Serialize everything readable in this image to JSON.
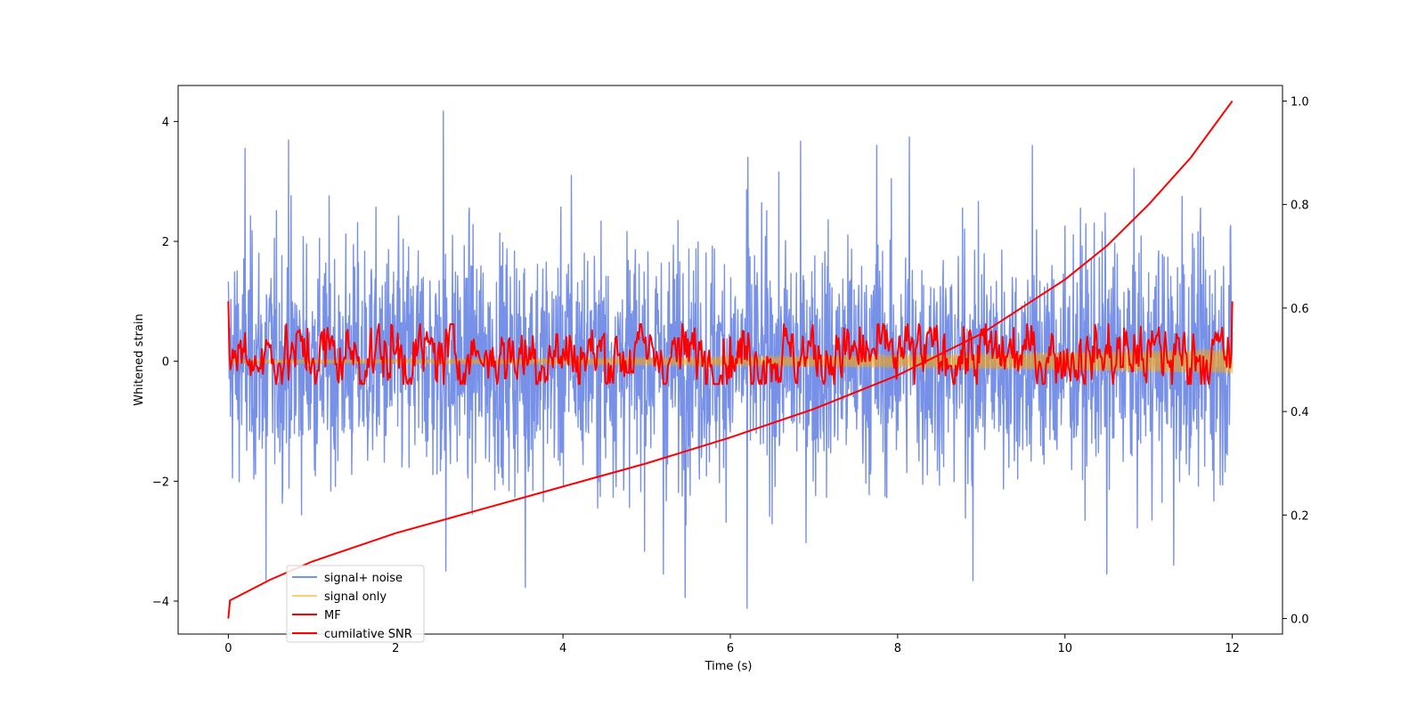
{
  "chart_data": {
    "type": "line",
    "xlabel": "Time (s)",
    "ylabel": "Whitened strain",
    "y2label": "",
    "xlim": [
      -0.6,
      12.6
    ],
    "ylim": [
      -4.55,
      4.6
    ],
    "y2lim": [
      -0.03,
      1.03
    ],
    "xticks": [
      0,
      2,
      4,
      6,
      8,
      10,
      12
    ],
    "yticks": [
      -4,
      -2,
      0,
      2,
      4
    ],
    "y2ticks": [
      0.0,
      0.2,
      0.4,
      0.6,
      0.8,
      1.0
    ],
    "xtick_labels": [
      "0",
      "2",
      "4",
      "6",
      "8",
      "10",
      "12"
    ],
    "ytick_labels": [
      "−4",
      "−2",
      "0",
      "2",
      "4"
    ],
    "y2tick_labels": [
      "0.0",
      "0.2",
      "0.4",
      "0.6",
      "0.8",
      "1.0"
    ],
    "grid": false,
    "legend_position": "lower-left",
    "series": [
      {
        "name": "signal+ noise",
        "axis": "left",
        "color": "#7891e8",
        "x_range": [
          0,
          12
        ],
        "envelope_upper_typical": 2.0,
        "envelope_lower_typical": -2.0,
        "max": 4.17,
        "min": -4.12,
        "peaks": [
          {
            "x": 2.57,
            "y": 4.17
          },
          {
            "x": 0.72,
            "y": 3.69
          },
          {
            "x": 8.14,
            "y": 3.74
          },
          {
            "x": 9.61,
            "y": 3.6
          },
          {
            "x": 6.84,
            "y": 3.67
          },
          {
            "x": 0.2,
            "y": 3.55
          },
          {
            "x": 7.75,
            "y": 3.6
          },
          {
            "x": 6.21,
            "y": 3.4
          },
          {
            "x": 4.1,
            "y": 3.1
          },
          {
            "x": 11.4,
            "y": 2.75
          }
        ],
        "troughs": [
          {
            "x": 6.2,
            "y": -4.12
          },
          {
            "x": 5.46,
            "y": -3.94
          },
          {
            "x": 3.55,
            "y": -3.77
          },
          {
            "x": 8.9,
            "y": -3.66
          },
          {
            "x": 10.5,
            "y": -3.55
          },
          {
            "x": 0.45,
            "y": -3.65
          },
          {
            "x": 2.6,
            "y": -3.5
          },
          {
            "x": 11.3,
            "y": -3.4
          },
          {
            "x": 5.2,
            "y": -3.55
          }
        ]
      },
      {
        "name": "signal only",
        "axis": "left",
        "color": "#ffa500",
        "x_range": [
          0,
          12
        ],
        "amplitude_start": 0.03,
        "amplitude_end": 0.2
      },
      {
        "name": "MF",
        "axis": "left",
        "color": "#ff0000",
        "x_range": [
          0,
          12
        ],
        "start_value": 1.0,
        "end_value": 1.0,
        "typical_band": [
          -0.3,
          0.5
        ]
      },
      {
        "name": "cumilative SNR",
        "axis": "right",
        "color": "#ff0000",
        "x": [
          0,
          0.02,
          0.5,
          1,
          2,
          3,
          4,
          5,
          6,
          7,
          8,
          9,
          10,
          10.5,
          11,
          11.5,
          12
        ],
        "values": [
          0.0,
          0.035,
          0.075,
          0.11,
          0.165,
          0.21,
          0.255,
          0.3,
          0.35,
          0.405,
          0.47,
          0.55,
          0.655,
          0.72,
          0.8,
          0.89,
          1.0
        ]
      }
    ]
  }
}
